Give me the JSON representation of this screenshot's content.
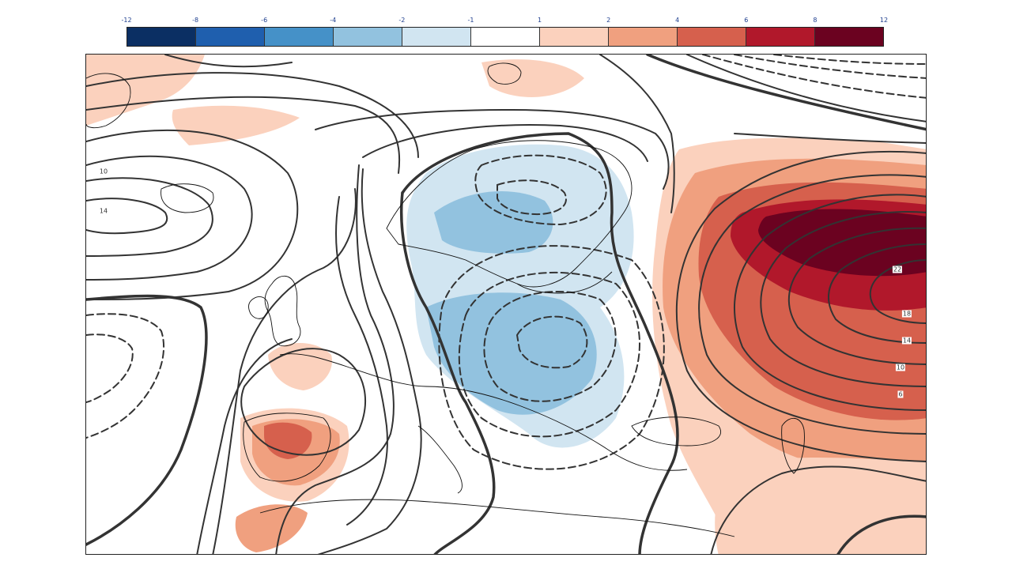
{
  "colorbar": {
    "ticks": [
      "-12",
      "-8",
      "-6",
      "-4",
      "-2",
      "-1",
      "1",
      "2",
      "4",
      "6",
      "8",
      "12"
    ],
    "colors": [
      "#0b2f63",
      "#1f5fae",
      "#4591c8",
      "#92c2df",
      "#d1e5f1",
      "#ffffff",
      "#fbd1bd",
      "#f0a07f",
      "#d6604d",
      "#b1182b",
      "#6b0220"
    ]
  },
  "contour_labels": [
    "10",
    "14",
    "22",
    "18",
    "14",
    "10",
    "6"
  ],
  "map": {
    "anomaly_colors": {
      "warm_light": "#fbd1bd",
      "warm_mid": "#f0a07f",
      "warm_strong": "#d6604d",
      "warm_deep": "#b1182b",
      "warm_max": "#6b0220",
      "cold_light": "#d1e5f1",
      "cold_mid": "#92c2df"
    },
    "contour_color": "#333333"
  }
}
